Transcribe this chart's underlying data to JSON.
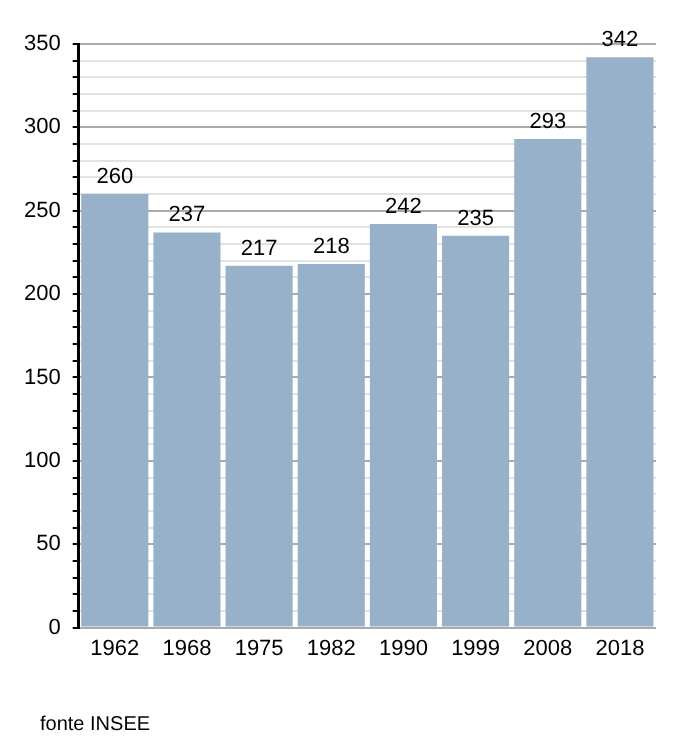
{
  "chart_data": {
    "type": "bar",
    "categories": [
      "1962",
      "1968",
      "1975",
      "1982",
      "1990",
      "1999",
      "2008",
      "2018"
    ],
    "values": [
      260,
      237,
      217,
      218,
      242,
      235,
      293,
      342
    ],
    "color": "#98b1cb",
    "data_labels": true,
    "grid": "y",
    "ylim": [
      0,
      350
    ],
    "yticks": [
      0,
      {
        "value": 10,
        "label": null
      },
      {
        "value": 20,
        "label": null
      },
      {
        "value": 30,
        "label": null
      },
      {
        "value": 40,
        "label": null
      },
      50,
      {
        "value": 60,
        "label": null
      },
      {
        "value": 70,
        "label": null
      },
      {
        "value": 80,
        "label": null
      },
      {
        "value": 90,
        "label": null
      },
      100,
      {
        "value": 110,
        "label": null
      },
      {
        "value": 120,
        "label": null
      },
      {
        "value": 130,
        "label": null
      },
      {
        "value": 140,
        "label": null
      },
      150,
      {
        "value": 160,
        "label": null
      },
      {
        "value": 170,
        "label": null
      },
      {
        "value": 180,
        "label": null
      },
      {
        "value": 190,
        "label": null
      },
      200,
      {
        "value": 210,
        "label": null
      },
      {
        "value": 220,
        "label": null
      },
      {
        "value": 230,
        "label": null
      },
      {
        "value": 240,
        "label": null
      },
      250,
      {
        "value": 260,
        "label": null
      },
      {
        "value": 270,
        "label": null
      },
      {
        "value": 280,
        "label": null
      },
      {
        "value": 290,
        "label": null
      },
      300,
      {
        "value": 310,
        "label": null
      },
      {
        "value": 320,
        "label": null
      },
      {
        "value": 330,
        "label": null
      },
      {
        "value": 340,
        "label": null
      },
      350
    ],
    "annotations": [
      "fonte INSEE"
    ]
  }
}
